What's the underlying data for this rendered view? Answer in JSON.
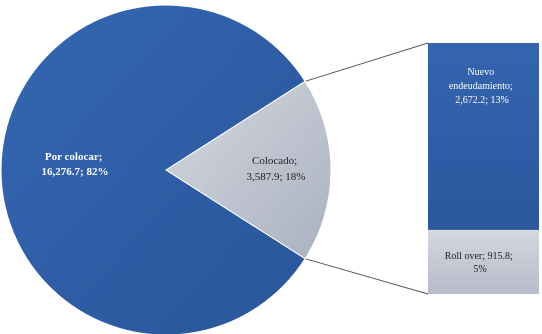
{
  "chart_data": {
    "type": "pie",
    "title": "",
    "pie": {
      "slices": [
        {
          "label": "Por colocar",
          "value": 16276.7,
          "percent": 82,
          "label_lines": [
            "Por colocar;",
            "16,276.7; 82%"
          ]
        },
        {
          "label": "Colocado",
          "value": 3587.9,
          "percent": 18,
          "label_lines": [
            "Colocado;",
            "3,587.9; 18%"
          ]
        }
      ]
    },
    "breakdown_bar": {
      "of_slice": "Colocado",
      "segments": [
        {
          "label": "Nuevo endeudamiento",
          "value": 2672.2,
          "percent": 13,
          "label_lines": [
            "Nuevo",
            "endeudamiento;",
            "2,672.2; 13%"
          ]
        },
        {
          "label": "Roll over",
          "value": 915.8,
          "percent": 5,
          "label_lines": [
            "Roll over; 915.8;",
            "5%"
          ]
        }
      ]
    },
    "colors": {
      "main_slice": "#2e5da8",
      "highlight_slice": "#c2c7d2",
      "bar_top": "#2f5fa9",
      "bar_bottom": "#c6cbd6",
      "connector": "#555555"
    },
    "legend": "none"
  }
}
